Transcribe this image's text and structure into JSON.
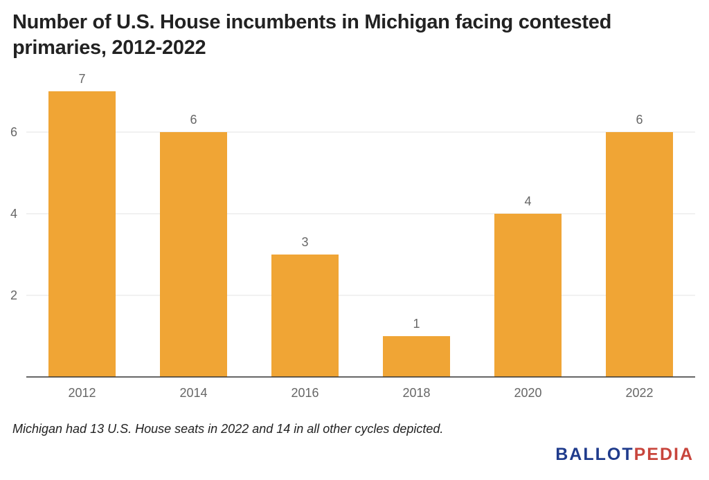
{
  "chart_data": {
    "type": "bar",
    "title": "Number of U.S. House incumbents in Michigan facing contested primaries, 2012-2022",
    "categories": [
      "2012",
      "2014",
      "2016",
      "2018",
      "2020",
      "2022"
    ],
    "values": [
      7,
      6,
      3,
      1,
      4,
      6
    ],
    "data_labels": [
      "7",
      "6",
      "3",
      "1",
      "4",
      "6"
    ],
    "xlabel": "",
    "ylabel": "",
    "ylim": [
      0,
      7.5
    ],
    "y_ticks": [
      2,
      4,
      6
    ],
    "y_tick_labels": [
      "2",
      "4",
      "6"
    ],
    "grid": true,
    "legend": "none",
    "bar_color": "#f0a535"
  },
  "footnote": "Michigan had 13 U.S. House seats in 2022 and 14 in all other cycles depicted.",
  "logo": {
    "part_a": "BALLOT",
    "part_b": "PEDIA",
    "color_a": "#1f3b8c",
    "color_b": "#c8453c"
  }
}
